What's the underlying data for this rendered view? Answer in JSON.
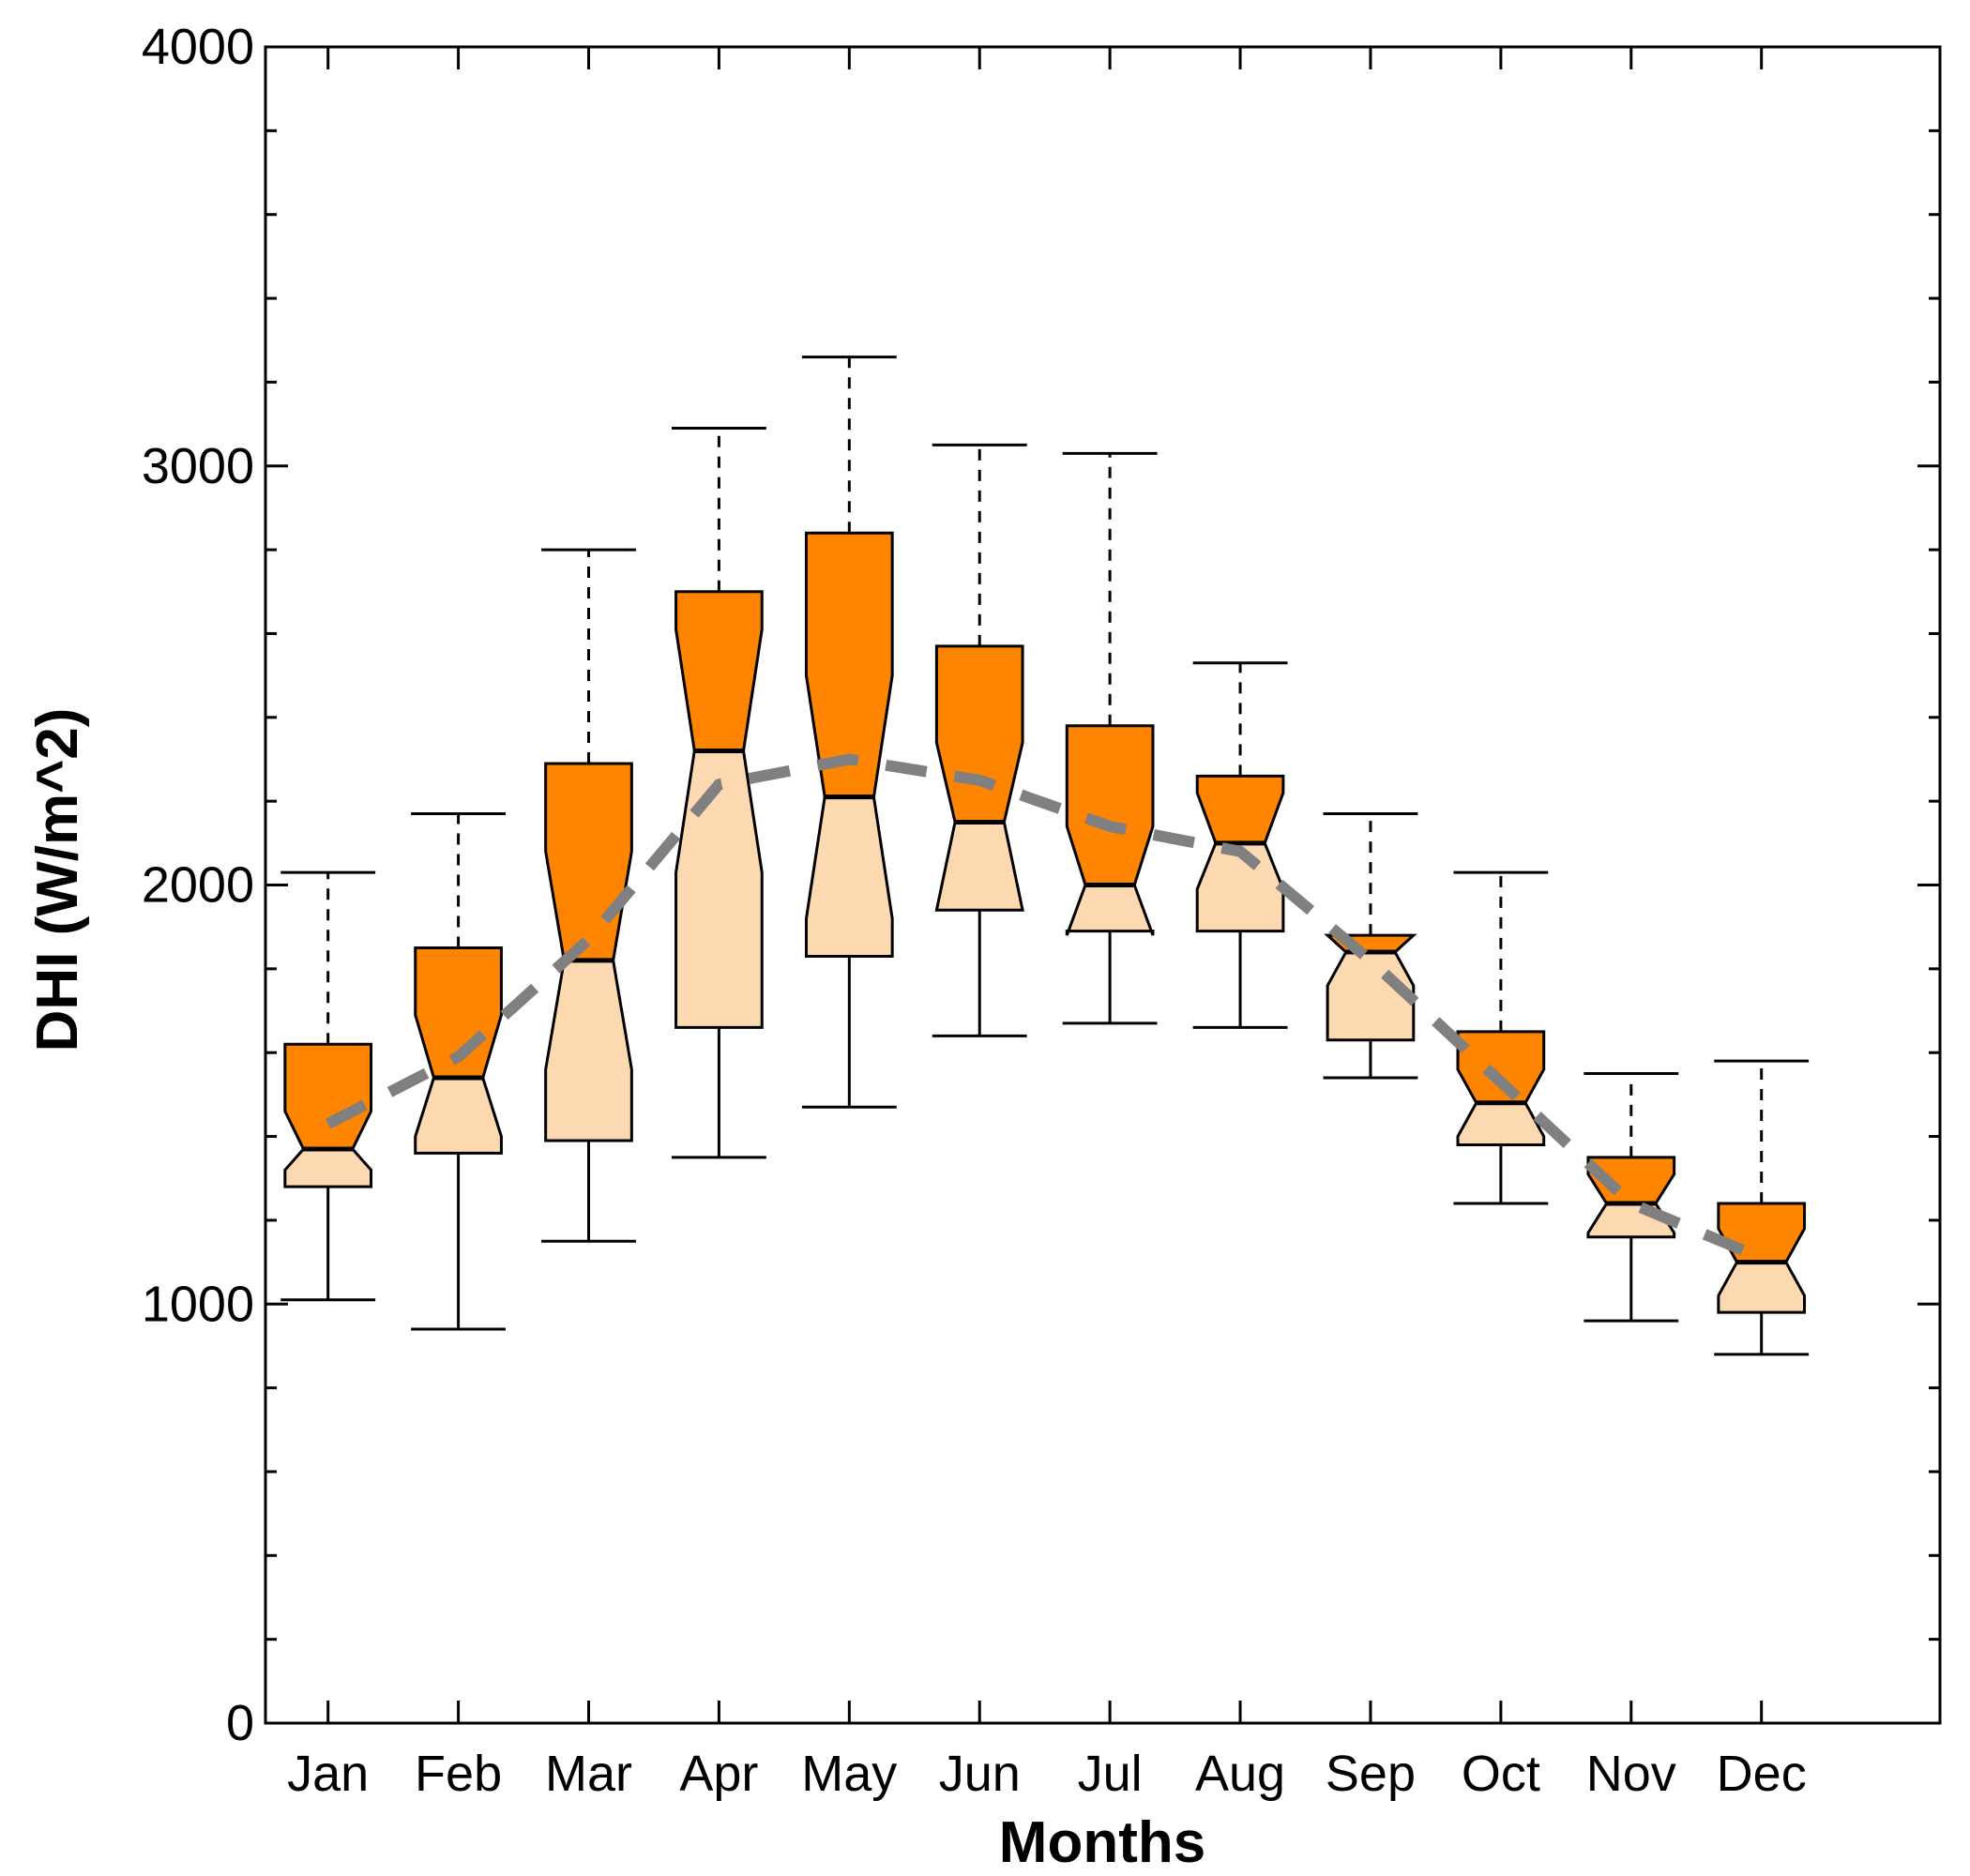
{
  "chart_data": {
    "type": "boxplot",
    "title": "",
    "xlabel": "Months",
    "ylabel": "DHI (W/m^2)",
    "ylim": [
      0,
      4000
    ],
    "yticks": [
      "0",
      "1000",
      "2000",
      "3000",
      "4000"
    ],
    "grid": false,
    "categories": [
      "Jan",
      "Feb",
      "Mar",
      "Apr",
      "May",
      "Jun",
      "Jul",
      "Aug",
      "Sep",
      "Oct",
      "Nov",
      "Dec"
    ],
    "whisker_low": [
      1010,
      940,
      1150,
      1350,
      1470,
      1640,
      1670,
      1660,
      1540,
      1240,
      960,
      880
    ],
    "q1": [
      1280,
      1360,
      1390,
      1660,
      1830,
      1940,
      1890,
      1890,
      1630,
      1380,
      1160,
      980
    ],
    "median": [
      1370,
      1540,
      1820,
      2320,
      2210,
      2150,
      2000,
      2100,
      1840,
      1480,
      1240,
      1100
    ],
    "q3": [
      1620,
      1850,
      2290,
      2700,
      2840,
      2570,
      2380,
      2260,
      1880,
      1650,
      1350,
      1240
    ],
    "whisker_high": [
      2030,
      2170,
      2800,
      3090,
      3260,
      3050,
      3030,
      2530,
      2170,
      2030,
      1550,
      1580
    ],
    "notch_low": [
      1320,
      1400,
      1560,
      2030,
      1920,
      1940,
      1880,
      1990,
      1760,
      1400,
      1170,
      1020
    ],
    "notch_high": [
      1460,
      1690,
      2080,
      2610,
      2500,
      2340,
      2140,
      2220,
      1880,
      1560,
      1310,
      1180
    ],
    "trend": {
      "style": "dashed",
      "values": [
        1430,
        1590,
        1870,
        2240,
        2300,
        2250,
        2140,
        2080,
        1820,
        1530,
        1240,
        1110
      ]
    },
    "colors": {
      "upper_box": "#FF8400",
      "lower_box": "#FDD9B2",
      "trend": "#808080",
      "stroke": "#000000"
    }
  }
}
